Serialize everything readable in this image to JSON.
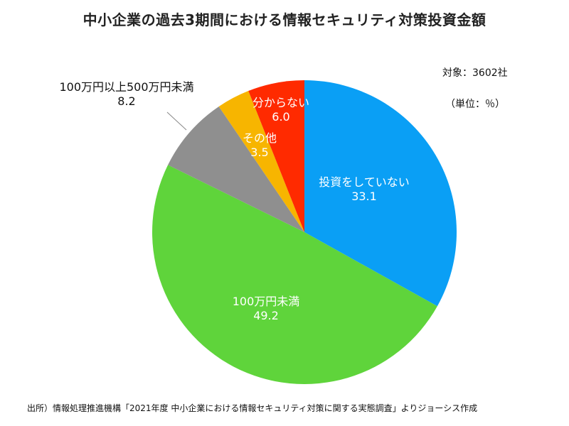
{
  "title": "中小企業の過去3期間における情報セキュリティ対策投資金額",
  "meta": {
    "count": "対象：3602社",
    "unit": "（単位：％）"
  },
  "source": "出所）情報処理推進機構「2021年度 中小企業における情報セキュリティ対策に関する実態調査」よりジョーシス作成",
  "chart_data": {
    "type": "pie",
    "title": "中小企業の過去3期間における情報セキュリティ対策投資金額",
    "slices": [
      {
        "label": "投資をしていない",
        "value": 33.1,
        "value_text": "33.1",
        "color": "#0a9ff5"
      },
      {
        "label": "100万円未満",
        "value": 49.2,
        "value_text": "49.2",
        "color": "#5fd43b"
      },
      {
        "label": "100万円以上500万円未満",
        "value": 8.2,
        "value_text": "8.2",
        "color": "#8f8f8f"
      },
      {
        "label": "その他",
        "value": 3.5,
        "value_text": "3.5",
        "color": "#f7b500"
      },
      {
        "label": "分からない",
        "value": 6.0,
        "value_text": "6.0",
        "color": "#ff2a00"
      }
    ]
  }
}
